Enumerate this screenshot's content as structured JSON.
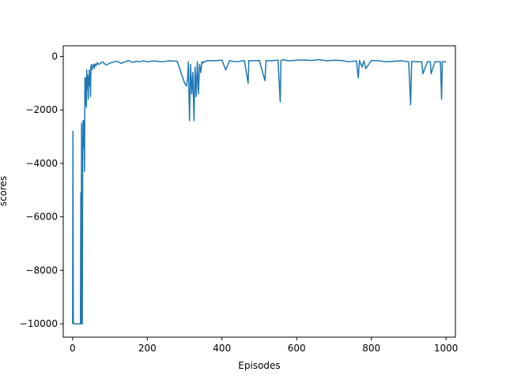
{
  "chart_data": {
    "type": "line",
    "title": "",
    "xlabel": "Episodes",
    "ylabel": "scores",
    "xlim": [
      -25,
      1025
    ],
    "ylim": [
      -10500,
      400
    ],
    "xticks": [
      0,
      200,
      400,
      600,
      800,
      1000
    ],
    "yticks": [
      0,
      -2000,
      -4000,
      -6000,
      -8000,
      -10000
    ],
    "grid": false,
    "line_color": "#1f77b4",
    "series": [
      {
        "name": "",
        "x": [
          0,
          1,
          2,
          3,
          6,
          10,
          14,
          18,
          21,
          22,
          23,
          24,
          25,
          26,
          27,
          28,
          29,
          30,
          31,
          32,
          33,
          34,
          35,
          36,
          37,
          38,
          39,
          40,
          41,
          42,
          43,
          44,
          45,
          46,
          47,
          48,
          49,
          50,
          52,
          54,
          56,
          58,
          60,
          63,
          66,
          70,
          75,
          80,
          90,
          100,
          110,
          120,
          130,
          140,
          150,
          160,
          170,
          180,
          190,
          200,
          210,
          220,
          240,
          260,
          280,
          300,
          305,
          308,
          310,
          313,
          316,
          319,
          322,
          325,
          328,
          331,
          334,
          337,
          340,
          343,
          346,
          349,
          352,
          355,
          360,
          380,
          400,
          410,
          420,
          440,
          460,
          470,
          472,
          480,
          500,
          515,
          518,
          530,
          550,
          556,
          558,
          562,
          580,
          600,
          620,
          640,
          660,
          680,
          700,
          720,
          740,
          760,
          765,
          768,
          775,
          780,
          785,
          800,
          820,
          840,
          860,
          880,
          900,
          905,
          908,
          920,
          935,
          938,
          950,
          958,
          960,
          970,
          985,
          988,
          990,
          1000
        ],
        "y": [
          -10000,
          -2800,
          -10000,
          -10000,
          -10000,
          -10000,
          -10000,
          -10000,
          -10000,
          -5100,
          -10000,
          -2500,
          -10000,
          -10000,
          -4000,
          -2400,
          -3100,
          -3400,
          -2400,
          -4300,
          -800,
          -1500,
          -1800,
          -800,
          -1900,
          -500,
          -1200,
          -900,
          -700,
          -1600,
          -800,
          -1100,
          -500,
          -600,
          -800,
          -1500,
          -400,
          -300,
          -500,
          -350,
          -300,
          -450,
          -280,
          -350,
          -230,
          -300,
          -250,
          -200,
          -320,
          -250,
          -200,
          -180,
          -260,
          -200,
          -150,
          -220,
          -180,
          -200,
          -160,
          -200,
          -180,
          -170,
          -200,
          -160,
          -180,
          -1000,
          -1100,
          -800,
          -200,
          -2400,
          -300,
          -1400,
          -600,
          -2400,
          -400,
          -1500,
          -200,
          -1400,
          -300,
          -600,
          -200,
          -250,
          -180,
          -200,
          -150,
          -160,
          -140,
          -500,
          -160,
          -200,
          -150,
          -1000,
          -150,
          -160,
          -150,
          -900,
          -150,
          -160,
          -140,
          -1700,
          -150,
          -120,
          -160,
          -140,
          -130,
          -150,
          -120,
          -160,
          -140,
          -150,
          -200,
          -160,
          -800,
          -150,
          -400,
          -160,
          -450,
          -150,
          -160,
          -200,
          -180,
          -160,
          -200,
          -1800,
          -180,
          -200,
          -200,
          -650,
          -200,
          -200,
          -650,
          -200,
          -200,
          -1600,
          -200,
          -200
        ]
      }
    ]
  }
}
